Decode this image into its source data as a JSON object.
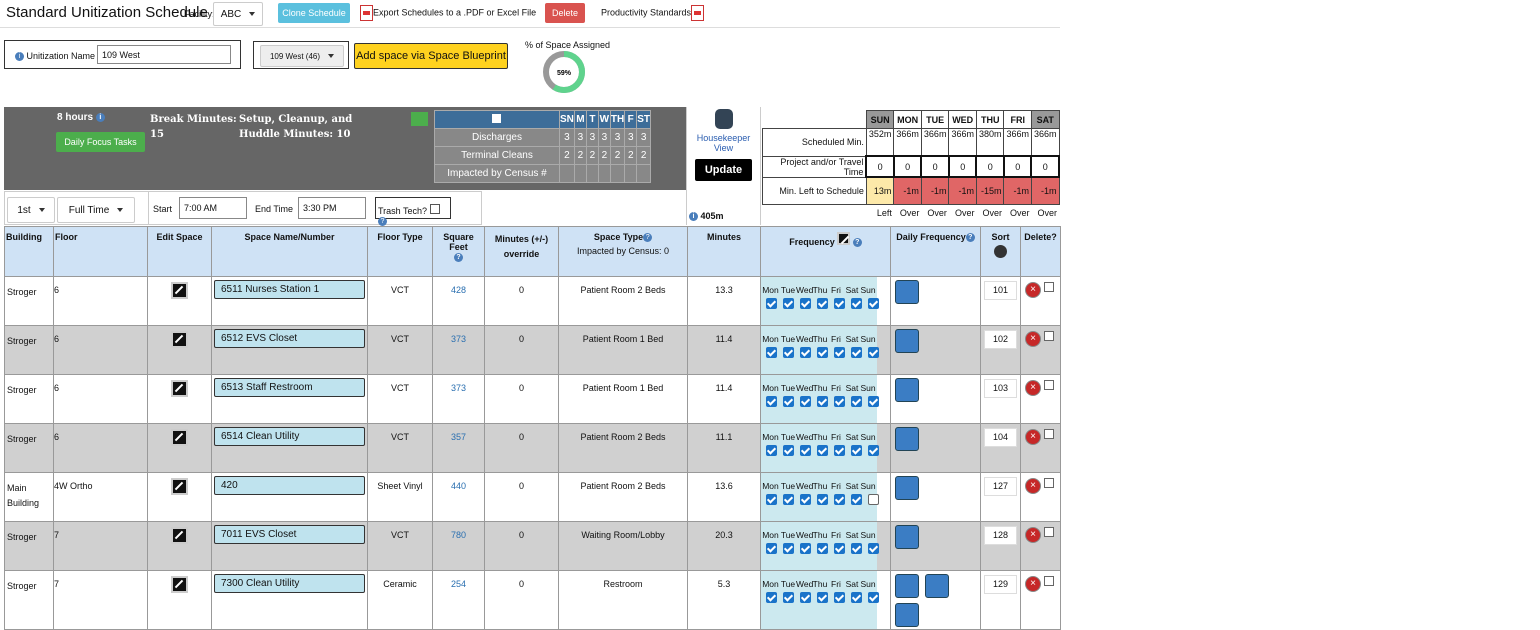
{
  "header": {
    "title": "Standard Unitization Schedule",
    "facility_label": "Facility:",
    "facility": "ABC",
    "clone_button": "Clone Schedule",
    "export_link": "Export Schedules to a .PDF or Excel File",
    "delete_button": "Delete",
    "productivity_link": "Productivity Standards"
  },
  "unitization": {
    "label": "Unitization Name",
    "name": "109 West",
    "select": "109 West (46)",
    "add_button": "Add space via Space Blueprint",
    "percent_label": "% of Space Assigned",
    "percent": 59,
    "percent_label_value": "59%"
  },
  "summary": {
    "hours": "8 hours",
    "focus_button": "Daily Focus Tasks",
    "break_label": "Break Minutes:",
    "break_minutes": 15,
    "setup_label": "Setup, Cleanup, and Huddle Minutes:",
    "setup_minutes": 10
  },
  "census": {
    "days": [
      "SN",
      "M",
      "T",
      "W",
      "TH",
      "F",
      "ST"
    ],
    "rows": [
      {
        "label": "Discharges",
        "values": [
          3,
          3,
          3,
          3,
          3,
          3,
          3
        ]
      },
      {
        "label": "Terminal Cleans",
        "values": [
          2,
          2,
          2,
          2,
          2,
          2,
          2
        ]
      },
      {
        "label": "Impacted by Census #",
        "values": [
          null,
          null,
          null,
          null,
          null,
          null,
          null
        ]
      }
    ]
  },
  "housekeeper": {
    "view_link": "Housekeeper View",
    "update_button": "Update",
    "total": "405m"
  },
  "schedule": {
    "days": [
      "SUN",
      "MON",
      "TUE",
      "WED",
      "THU",
      "FRI",
      "SAT"
    ],
    "scheduled_label": "Scheduled Min.",
    "scheduled": [
      "352m",
      "366m",
      "366m",
      "366m",
      "380m",
      "366m",
      "366m"
    ],
    "project_label": "Project and/or Travel Time",
    "project": [
      0,
      0,
      0,
      0,
      0,
      0,
      0
    ],
    "left_label": "Min. Left to Schedule",
    "left": [
      "13m",
      "-1m",
      "-1m",
      "-1m",
      "-15m",
      "-1m",
      "-1m"
    ],
    "status": [
      "Left",
      "Over",
      "Over",
      "Over",
      "Over",
      "Over",
      "Over"
    ]
  },
  "controls": {
    "shift": "1st",
    "type": "Full Time",
    "start_label": "Start",
    "start": "7:00 AM",
    "end_label": "End Time",
    "end": "3:30 PM",
    "trash_label": "Trash Tech?"
  },
  "table": {
    "columns": {
      "building": "Building",
      "floor": "Floor",
      "edit": "Edit Space",
      "name": "Space Name/Number",
      "floor_type": "Floor Type",
      "sqft": "Square Feet",
      "override": "Minutes (+/-) override",
      "space_type": "Space Type",
      "census": "Impacted by Census: 0",
      "minutes": "Minutes",
      "frequency": "Frequency",
      "daily": "Daily Frequency",
      "sort": "Sort",
      "delete": "Delete?"
    },
    "freq_days": [
      "Mon",
      "Tue",
      "Wed",
      "Thu",
      "Fri",
      "Sat",
      "Sun"
    ],
    "rows": [
      {
        "building": "Stroger",
        "floor": "6",
        "name": "6511 Nurses Station 1",
        "floor_type": "VCT",
        "sqft": 428,
        "override": 0,
        "space_type": "Patient Room 2 Beds",
        "minutes": 13.3,
        "freq": [
          true,
          true,
          true,
          true,
          true,
          true,
          true
        ],
        "daily": 1,
        "sort": 101
      },
      {
        "building": "Stroger",
        "floor": "6",
        "name": "6512 EVS Closet",
        "floor_type": "VCT",
        "sqft": 373,
        "override": 0,
        "space_type": "Patient Room 1 Bed",
        "minutes": 11.4,
        "freq": [
          true,
          true,
          true,
          true,
          true,
          true,
          true
        ],
        "daily": 1,
        "sort": 102
      },
      {
        "building": "Stroger",
        "floor": "6",
        "name": "6513 Staff Restroom",
        "floor_type": "VCT",
        "sqft": 373,
        "override": 0,
        "space_type": "Patient Room 1 Bed",
        "minutes": 11.4,
        "freq": [
          true,
          true,
          true,
          true,
          true,
          true,
          true
        ],
        "daily": 1,
        "sort": 103
      },
      {
        "building": "Stroger",
        "floor": "6",
        "name": "6514 Clean Utility",
        "floor_type": "VCT",
        "sqft": 357,
        "override": 0,
        "space_type": "Patient Room 2 Beds",
        "minutes": 11.1,
        "freq": [
          true,
          true,
          true,
          true,
          true,
          true,
          true
        ],
        "daily": 1,
        "sort": 104
      },
      {
        "building": "Main Building",
        "floor": "4W Ortho",
        "name": "420",
        "floor_type": "Sheet Vinyl",
        "sqft": 440,
        "override": 0,
        "space_type": "Patient Room 2 Beds",
        "minutes": 13.6,
        "freq": [
          true,
          true,
          true,
          true,
          true,
          true,
          false
        ],
        "daily": 1,
        "sort": 127
      },
      {
        "building": "Stroger",
        "floor": "7",
        "name": "7011 EVS Closet",
        "floor_type": "VCT",
        "sqft": 780,
        "override": 0,
        "space_type": "Waiting Room/Lobby",
        "minutes": 20.3,
        "freq": [
          true,
          true,
          true,
          true,
          true,
          true,
          true
        ],
        "daily": 1,
        "sort": 128
      },
      {
        "building": "Stroger",
        "floor": "7",
        "name": "7300 Clean Utility",
        "floor_type": "Ceramic",
        "sqft": 254,
        "override": 0,
        "space_type": "Restroom",
        "minutes": 5.3,
        "freq": [
          true,
          true,
          true,
          true,
          true,
          true,
          true
        ],
        "daily": 3,
        "sort": 129
      }
    ]
  }
}
